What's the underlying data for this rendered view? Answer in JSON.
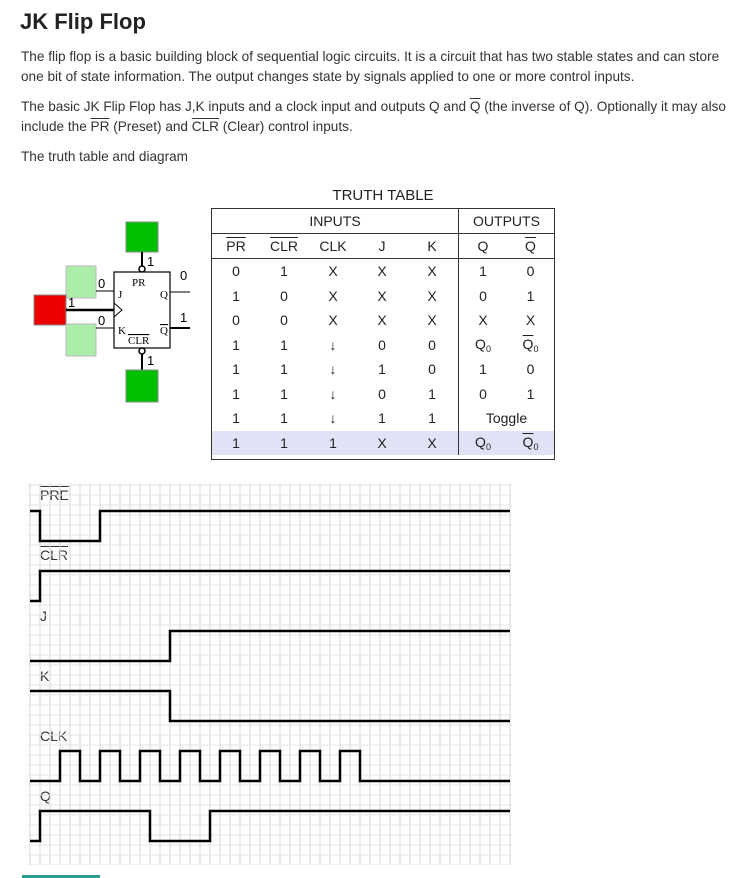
{
  "page": {
    "title": "JK Flip Flop",
    "para1": "The flip flop is a basic building block of sequential logic circuits. It is a circuit that has two stable states and can store one bit of state information. The output changes state by signals applied to one or more control inputs.",
    "para2_a": "The basic JK Flip Flop has J,K inputs and a clock input and outputs Q and ",
    "para2_qbar": "Q",
    "para2_b": " (the inverse of Q). Optionally it may also include the ",
    "para2_pr": "PR",
    "para2_c": " (Preset) and ",
    "para2_clr": "CLR",
    "para2_d": " (Clear) control inputs.",
    "para3": "The truth table and diagram"
  },
  "truth_table": {
    "title": "TRUTH TABLE",
    "group_inputs": "INPUTS",
    "group_outputs": "OUTPUTS",
    "headers": [
      "PR",
      "CLR",
      "CLK",
      "J",
      "K",
      "Q",
      "Q"
    ],
    "rows": [
      [
        "0",
        "1",
        "X",
        "X",
        "X",
        "1",
        "0"
      ],
      [
        "1",
        "0",
        "X",
        "X",
        "X",
        "0",
        "1"
      ],
      [
        "0",
        "0",
        "X",
        "X",
        "X",
        "X",
        "X"
      ],
      [
        "1",
        "1",
        "↓",
        "0",
        "0",
        "Q",
        "Q"
      ],
      [
        "1",
        "1",
        "↓",
        "1",
        "0",
        "1",
        "0"
      ],
      [
        "1",
        "1",
        "↓",
        "0",
        "1",
        "0",
        "1"
      ],
      [
        "1",
        "1",
        "↓",
        "1",
        "1",
        "Toggle",
        ""
      ],
      [
        "1",
        "1",
        "1",
        "X",
        "X",
        "Q",
        "Q"
      ]
    ],
    "subscript": "0",
    "highlight_row": 7,
    "highlight_color": "#e2e2f7"
  },
  "circuit": {
    "chip_pr": "PR",
    "chip_clr": "CLR",
    "chip_j": "J",
    "chip_k": "K",
    "chip_q": "Q",
    "chip_qbar": "Q",
    "pr_value": "1",
    "clr_value": "1",
    "j_value": "0",
    "k_value": "0",
    "clk_value": "1",
    "q_value": "0",
    "qbar_value": "1",
    "color_high": "#00c000",
    "color_low_light": "#aaeeaa",
    "color_clk": "#ee0000"
  },
  "waveform": {
    "labels": [
      "PRE",
      "CLR",
      "J",
      "K",
      "CLK",
      "Q"
    ],
    "pre_clr_overline": true,
    "signals": {
      "PRE": [
        [
          0,
          1
        ],
        [
          1,
          0
        ],
        [
          7,
          1
        ]
      ],
      "CLR": [
        [
          0,
          0
        ],
        [
          1,
          1
        ]
      ],
      "J": [
        [
          0,
          0
        ],
        [
          14,
          1
        ]
      ],
      "K": [
        [
          0,
          1
        ],
        [
          14,
          0
        ]
      ],
      "CLK": [
        [
          0,
          0
        ],
        [
          3,
          1
        ],
        [
          5,
          0
        ],
        [
          7,
          1
        ],
        [
          9,
          0
        ],
        [
          11,
          1
        ],
        [
          13,
          0
        ],
        [
          15,
          1
        ],
        [
          17,
          0
        ],
        [
          19,
          1
        ],
        [
          21,
          0
        ],
        [
          23,
          1
        ],
        [
          25,
          0
        ],
        [
          27,
          1
        ],
        [
          29,
          0
        ],
        [
          31,
          1
        ],
        [
          33,
          0
        ]
      ],
      "Q": [
        [
          0,
          0
        ],
        [
          1,
          1
        ],
        [
          12,
          0
        ],
        [
          18,
          1
        ]
      ]
    }
  }
}
